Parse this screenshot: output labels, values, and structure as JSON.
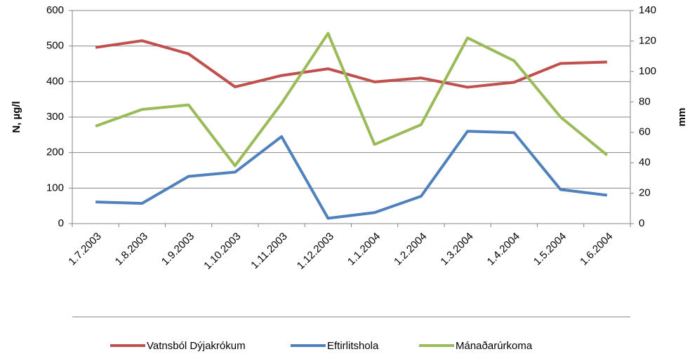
{
  "chart_data": {
    "type": "line",
    "categories": [
      "1.7.2003",
      "1.8.2003",
      "1.9.2003",
      "1.10.2003",
      "1.11.2003",
      "1.12.2003",
      "1.1.2004",
      "1.2.2004",
      "1.3.2004",
      "1.4.2004",
      "1.5.2004",
      "1.6.2004"
    ],
    "series": [
      {
        "name": "Vatnsból Dýjakrókum",
        "color": "#c0504d",
        "values": [
          496,
          515,
          478,
          385,
          417,
          436,
          399,
          410,
          384,
          398,
          451,
          455
        ]
      },
      {
        "name": "Eftirlitshola",
        "color": "#4f81bd",
        "values": [
          61,
          57,
          133,
          145,
          245,
          15,
          31,
          77,
          260,
          256,
          96,
          80
        ]
      },
      {
        "name": "Mánaðarúrkoma",
        "color": "#9bbb59",
        "axis": "y2",
        "values": [
          64,
          75,
          78,
          38,
          79,
          125,
          52,
          65,
          122,
          107,
          70,
          45
        ]
      }
    ],
    "ylabel": "N, µg/l",
    "y2label": "mm",
    "ylim": [
      0,
      600
    ],
    "yticks": [
      0,
      100,
      200,
      300,
      400,
      500,
      600
    ],
    "y2lim": [
      0,
      140
    ],
    "y2ticks": [
      0,
      20,
      40,
      60,
      80,
      100,
      120,
      140
    ],
    "grid": true,
    "legend": "bottom"
  }
}
